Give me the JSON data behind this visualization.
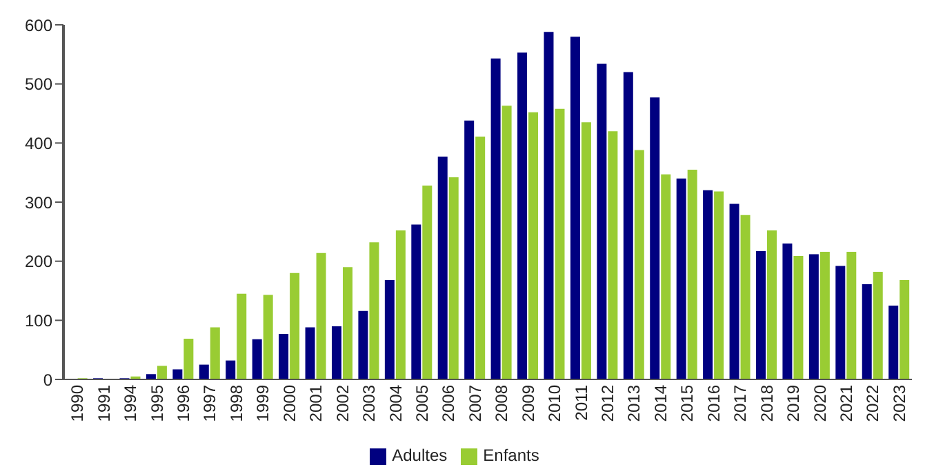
{
  "chart_data": {
    "type": "bar",
    "categories": [
      "1990",
      "1991",
      "1994",
      "1995",
      "1996",
      "1997",
      "1998",
      "1999",
      "2000",
      "2001",
      "2002",
      "2003",
      "2004",
      "2005",
      "2006",
      "2007",
      "2008",
      "2009",
      "2010",
      "2011",
      "2012",
      "2013",
      "2014",
      "2015",
      "2016",
      "2017",
      "2018",
      "2019",
      "2020",
      "2021",
      "2022",
      "2023"
    ],
    "series": [
      {
        "name": "Adultes",
        "color": "#000080",
        "values": [
          0,
          2,
          2,
          9,
          17,
          25,
          32,
          68,
          77,
          88,
          90,
          116,
          168,
          262,
          377,
          438,
          543,
          553,
          588,
          580,
          534,
          520,
          477,
          340,
          320,
          297,
          217,
          230,
          212,
          192,
          161,
          125
        ]
      },
      {
        "name": "Enfants",
        "color": "#99cc33",
        "values": [
          2,
          0,
          5,
          23,
          69,
          88,
          145,
          143,
          180,
          214,
          190,
          232,
          252,
          328,
          342,
          411,
          463,
          452,
          458,
          435,
          420,
          388,
          347,
          355,
          318,
          278,
          252,
          209,
          216,
          216,
          182,
          168
        ]
      }
    ],
    "ylim": [
      0,
      600
    ],
    "yticks": [
      0,
      100,
      200,
      300,
      400,
      500,
      600
    ],
    "grid": false,
    "legend": "bottom"
  }
}
